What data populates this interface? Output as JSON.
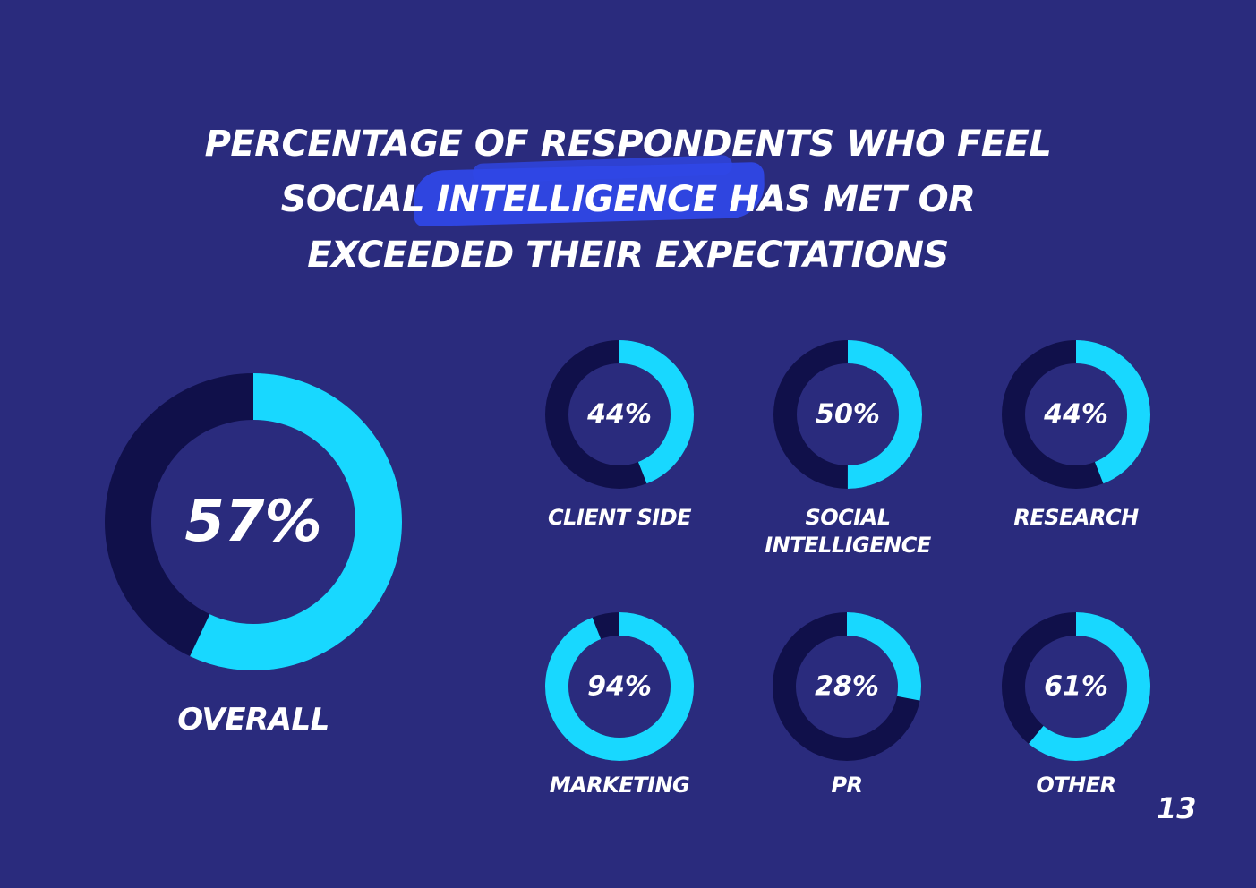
{
  "title": "Percentage of respondents who feel\nsocial intelligence has met or\nexceeded their expectations",
  "colors": {
    "background": "#2a2b7d",
    "filled": "#18d8ff",
    "track": "#10104a",
    "brush": "#2f47e6"
  },
  "page_number": "13",
  "chart_data": [
    {
      "type": "pie",
      "label": "Overall",
      "value": 57,
      "display": "57%"
    },
    {
      "type": "pie",
      "label": "Client side",
      "value": 44,
      "display": "44%"
    },
    {
      "type": "pie",
      "label": "Social\nintelligence",
      "value": 50,
      "display": "50%"
    },
    {
      "type": "pie",
      "label": "Research",
      "value": 44,
      "display": "44%"
    },
    {
      "type": "pie",
      "label": "Marketing",
      "value": 94,
      "display": "94%"
    },
    {
      "type": "pie",
      "label": "PR",
      "value": 28,
      "display": "28%"
    },
    {
      "type": "pie",
      "label": "Other",
      "value": 61,
      "display": "61%"
    }
  ]
}
